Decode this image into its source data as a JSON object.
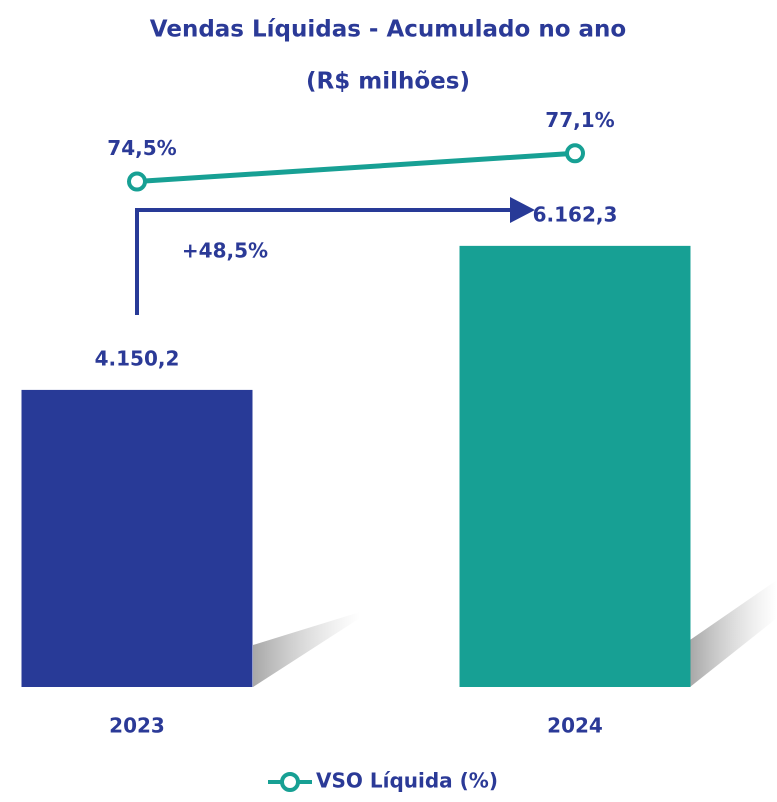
{
  "chart_data": {
    "type": "bar",
    "title": "Vendas Líquidas - Acumulado no ano",
    "subtitle": "(R$ milhões)",
    "categories": [
      "2023",
      "2024"
    ],
    "values": [
      4150.2,
      6162.3
    ],
    "value_labels": [
      "4.150,2",
      "6.162,3"
    ],
    "colors": [
      "#283a97",
      "#17a094"
    ],
    "ylim": [
      0,
      8200
    ],
    "series": [
      {
        "name": "VSO Líquida (%)",
        "color": "#17a094",
        "axis": "y2",
        "values": [
          74.5,
          77.1
        ],
        "value_labels": [
          "74,5%",
          "77,1%"
        ]
      }
    ],
    "y2lim": [
      28,
      82
    ],
    "annotations": [
      "+48,5%"
    ]
  }
}
